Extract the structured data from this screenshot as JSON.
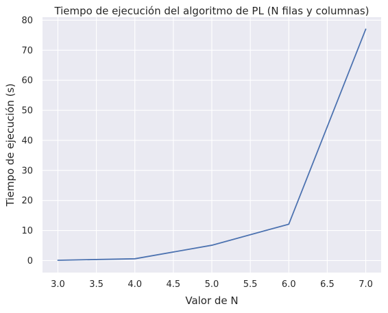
{
  "chart_data": {
    "type": "line",
    "title": "Tiempo de ejecución del algoritmo de PL (N filas y columnas)",
    "xlabel": "Valor de N",
    "ylabel": "Tiempo de ejecución (s)",
    "xlim": [
      2.8,
      7.2
    ],
    "ylim": [
      -4,
      81
    ],
    "xticks": [
      3.0,
      3.5,
      4.0,
      4.5,
      5.0,
      5.5,
      6.0,
      6.5,
      7.0
    ],
    "xtick_labels": [
      "3.0",
      "3.5",
      "4.0",
      "4.5",
      "5.0",
      "5.5",
      "6.0",
      "6.5",
      "7.0"
    ],
    "yticks": [
      0,
      10,
      20,
      30,
      40,
      50,
      60,
      70,
      80
    ],
    "ytick_labels": [
      "0",
      "10",
      "20",
      "30",
      "40",
      "50",
      "60",
      "70",
      "80"
    ],
    "grid": true,
    "series": [
      {
        "x": [
          3,
          4,
          5,
          6,
          7
        ],
        "values": [
          0.1,
          0.6,
          5.1,
          12.1,
          77.0
        ]
      }
    ]
  },
  "colors": {
    "plot_background": "#eaeaf2",
    "grid": "#ffffff",
    "line": "#4c72b0",
    "text": "#262626"
  }
}
